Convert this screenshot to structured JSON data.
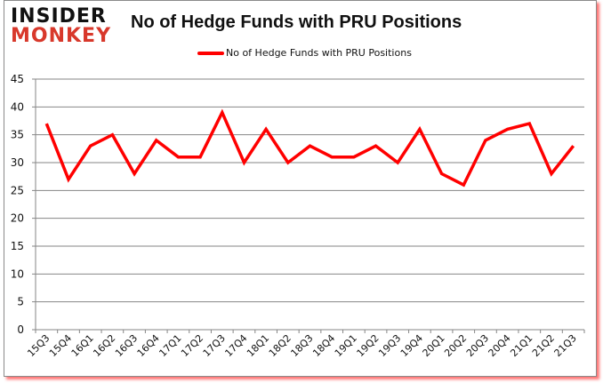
{
  "logo": {
    "line1": "INSIDER",
    "line2": "MONKEY"
  },
  "colors": {
    "series": "#ff0000",
    "grid": "#868686",
    "logo_accent": "#d8382b",
    "frame_shadow": "#ff0000"
  },
  "chart_data": {
    "type": "line",
    "title": "No of Hedge Funds with PRU Positions",
    "xlabel": "",
    "ylabel": "",
    "ylim": [
      0,
      45
    ],
    "yticks": [
      0,
      5,
      10,
      15,
      20,
      25,
      30,
      35,
      40,
      45
    ],
    "grid": true,
    "legend_position": "top",
    "categories": [
      "15Q3",
      "15Q4",
      "16Q1",
      "16Q2",
      "16Q3",
      "16Q4",
      "17Q1",
      "17Q2",
      "17Q3",
      "17Q4",
      "18Q1",
      "18Q2",
      "18Q3",
      "18Q4",
      "19Q1",
      "19Q2",
      "19Q3",
      "19Q4",
      "20Q1",
      "20Q2",
      "20Q3",
      "20Q4",
      "21Q1",
      "21Q2",
      "21Q3"
    ],
    "series": [
      {
        "name": "No of Hedge Funds with PRU Positions",
        "values": [
          37,
          27,
          33,
          35,
          28,
          34,
          31,
          31,
          39,
          30,
          36,
          30,
          33,
          31,
          31,
          33,
          30,
          36,
          28,
          26,
          34,
          36,
          37,
          28,
          33
        ]
      }
    ]
  }
}
